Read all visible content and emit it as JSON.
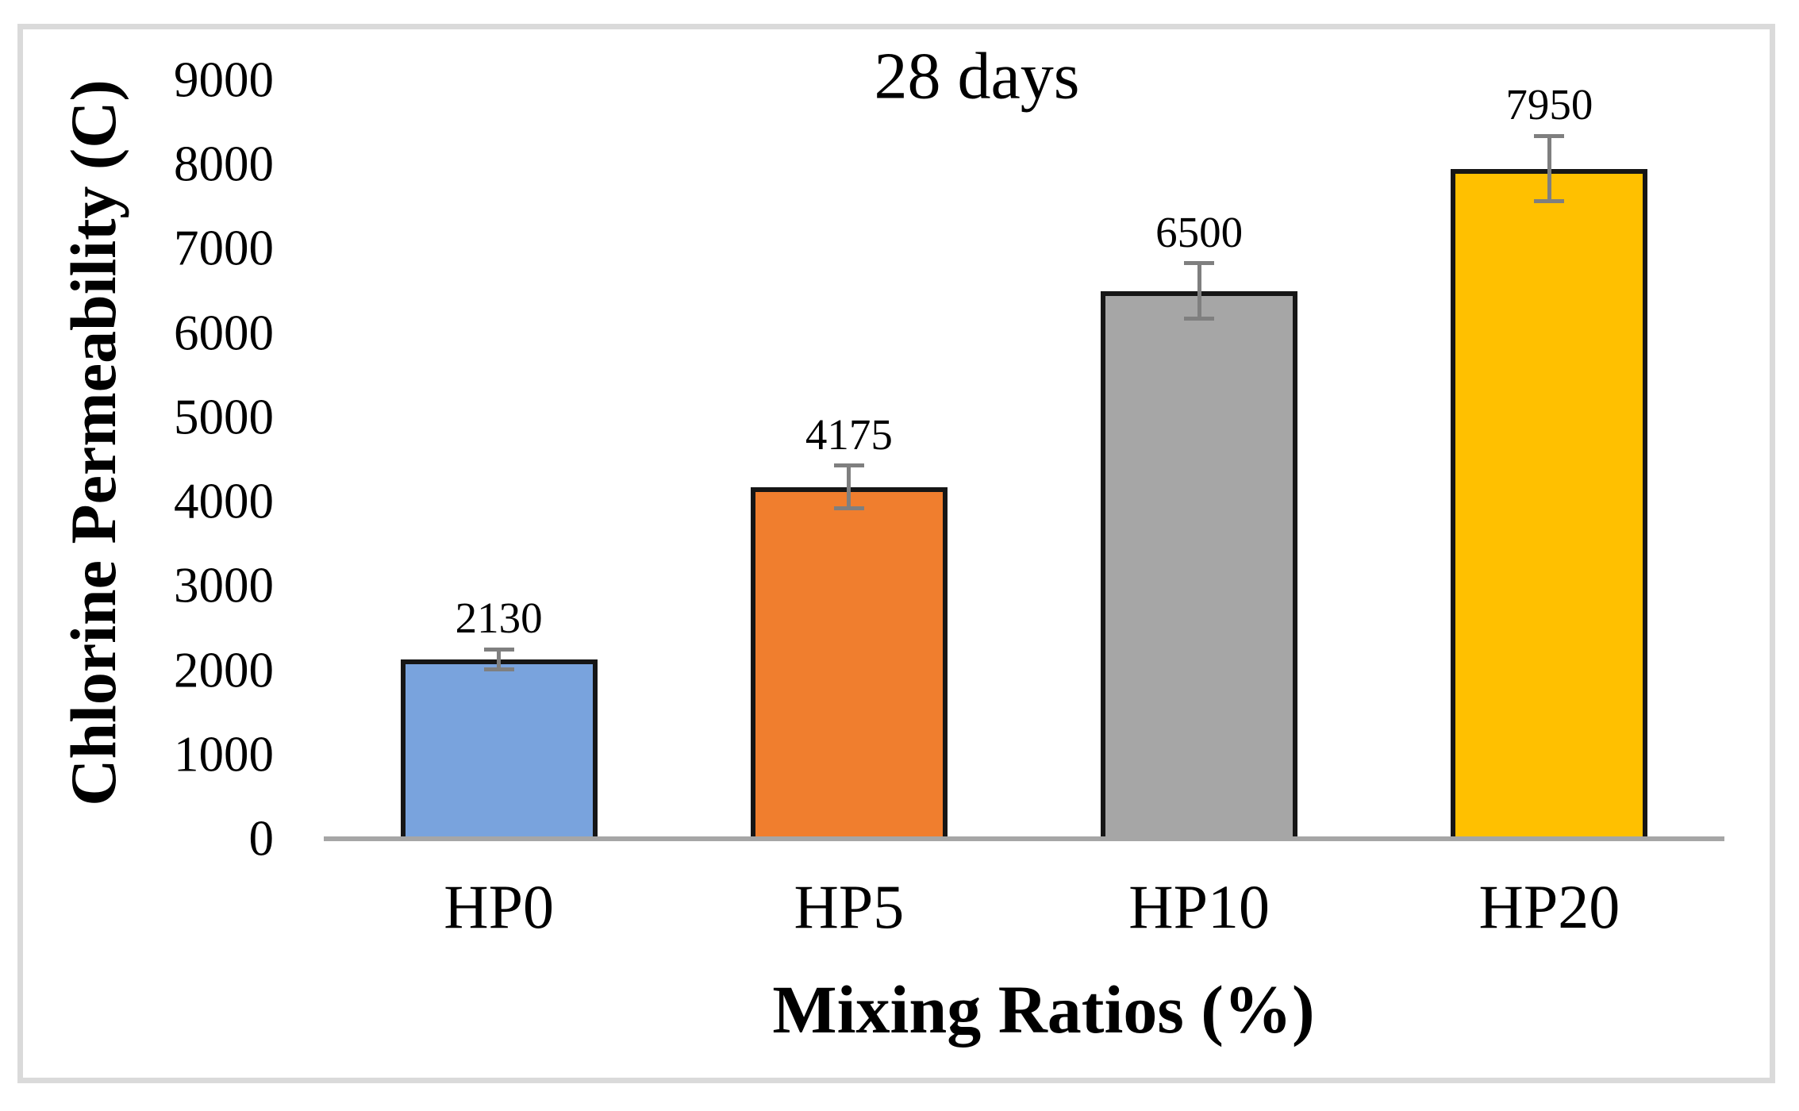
{
  "figure": {
    "title": "28 days"
  },
  "chart_data": {
    "type": "bar",
    "title": "28 days",
    "xlabel": "Mixing Ratios (%)",
    "ylabel": "Chlorine Permeability (C)",
    "categories": [
      "HP0",
      "HP5",
      "HP10",
      "HP20"
    ],
    "values": [
      2130,
      4175,
      6500,
      7950
    ],
    "data_labels": [
      "2130",
      "4175",
      "6500",
      "7950"
    ],
    "error_bars": [
      120,
      250,
      330,
      390
    ],
    "ylim": [
      0,
      9000
    ],
    "ytick_step": 1000,
    "yticks": [
      0,
      1000,
      2000,
      3000,
      4000,
      5000,
      6000,
      7000,
      8000,
      9000
    ],
    "grid": false,
    "legend": false,
    "bar_colors": [
      "#79A3DD",
      "#F07E2E",
      "#A6A6A6",
      "#FFC000"
    ],
    "bar_border_color": "#161616",
    "error_bar_color": "#7f7f7f",
    "axis_line_color": "#a6a6a6",
    "frame_border_color": "#dadada",
    "text_color": "#000000"
  }
}
